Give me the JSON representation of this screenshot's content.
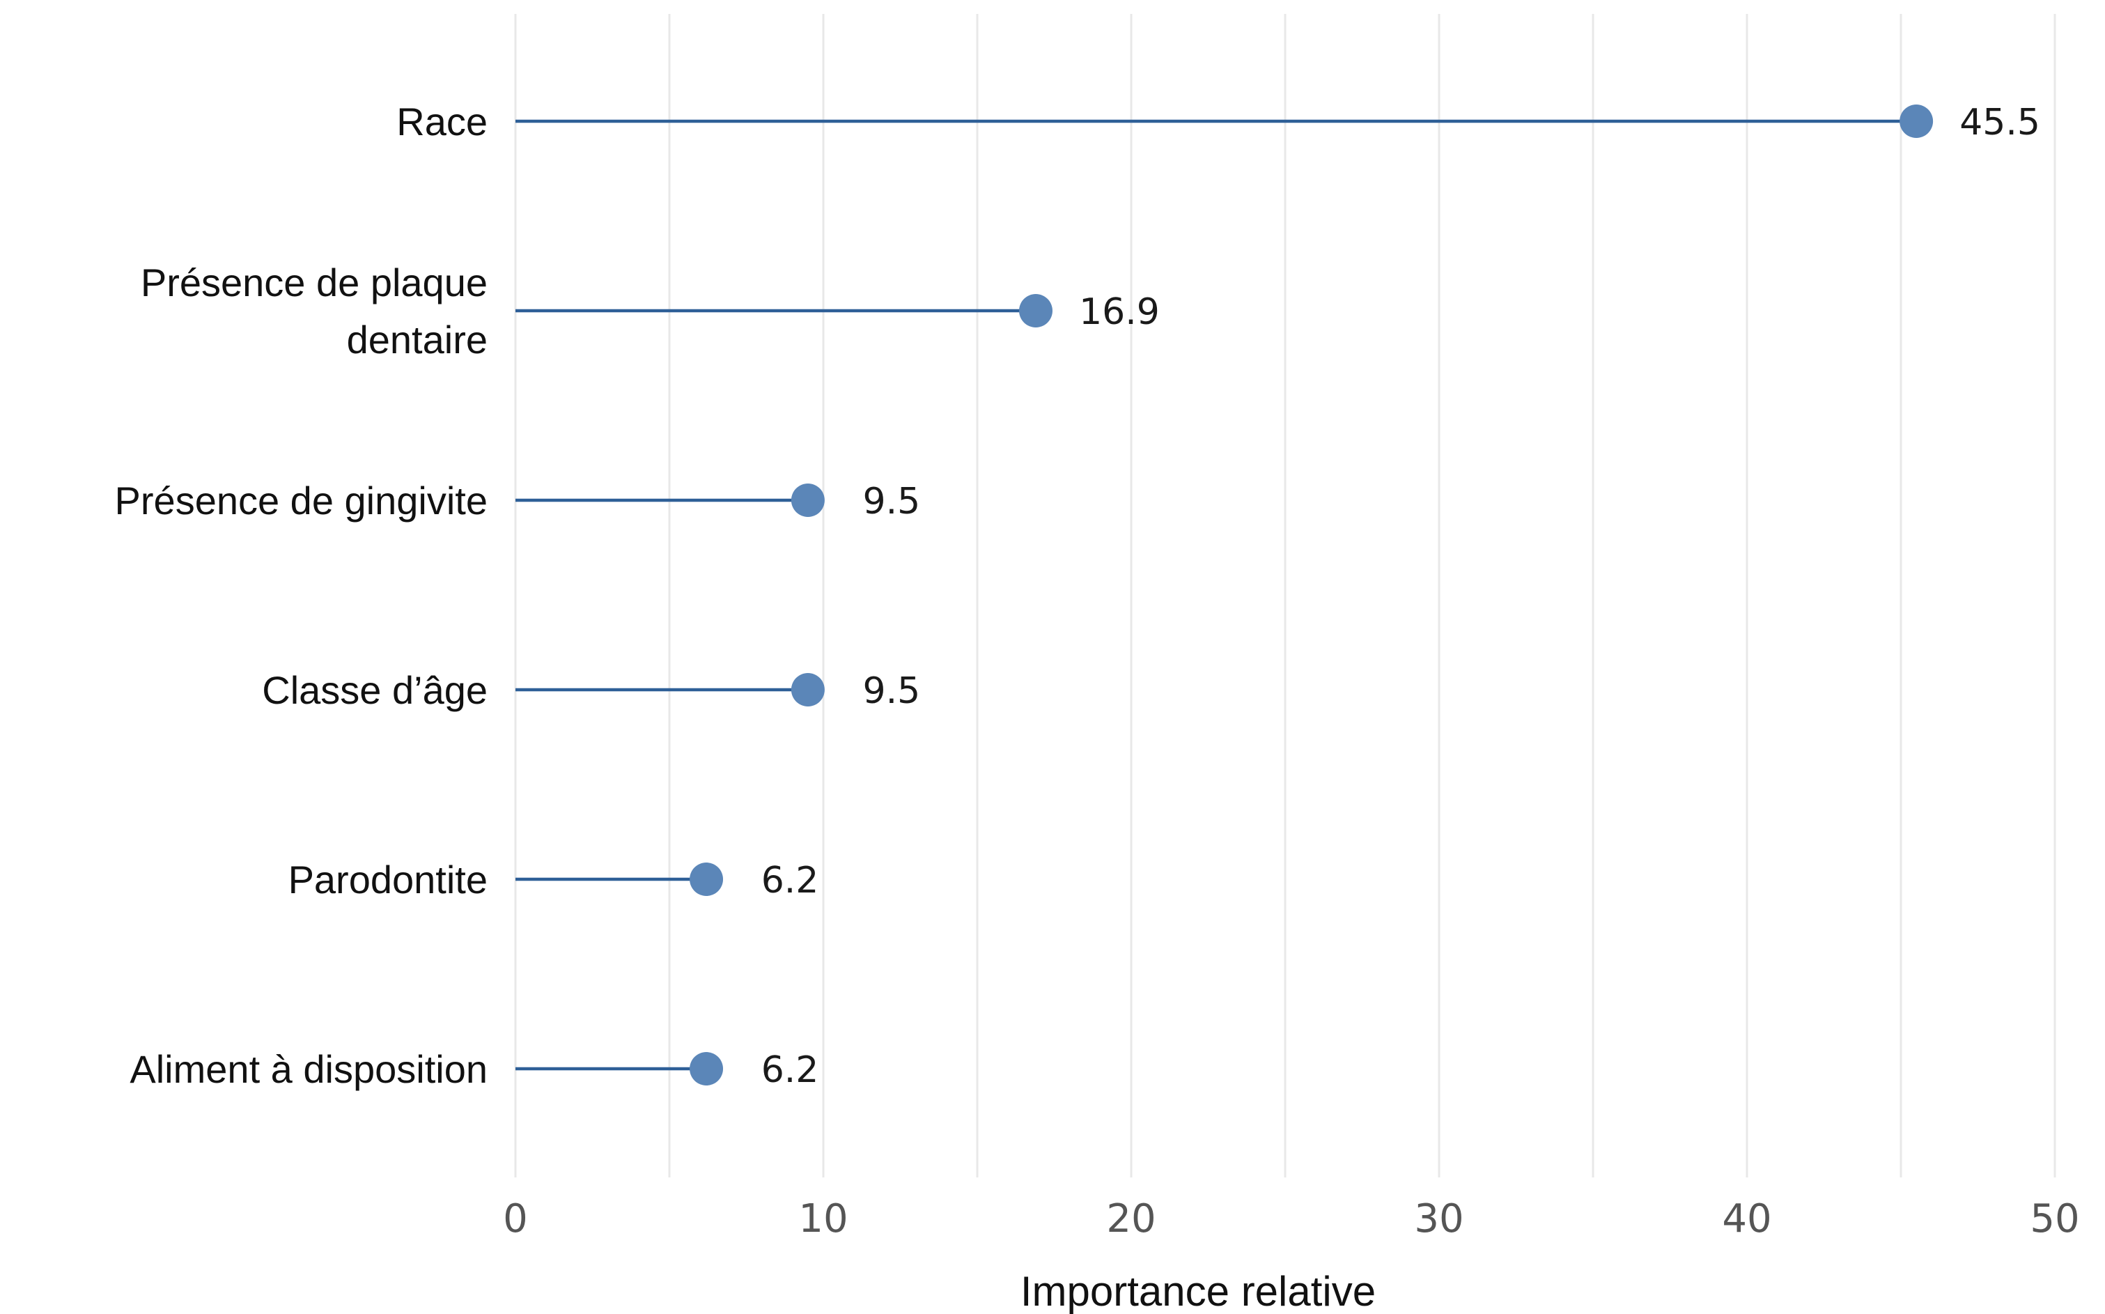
{
  "chart_data": {
    "type": "lollipop",
    "orientation": "horizontal",
    "title": "",
    "xlabel": "Importance relative",
    "ylabel": "",
    "xlim": [
      0,
      50
    ],
    "xticks": [
      0,
      10,
      20,
      30,
      40,
      50
    ],
    "grid": "vertical",
    "legend": "none",
    "categories": [
      [
        "Race"
      ],
      [
        "Présence de plaque",
        "dentaire"
      ],
      [
        "Présence de gingivite"
      ],
      [
        "Classe d’âge"
      ],
      [
        "Parodontite"
      ],
      [
        "Aliment à disposition"
      ]
    ],
    "values": [
      45.5,
      16.9,
      9.5,
      9.5,
      6.2,
      6.2
    ],
    "value_labels": [
      "45.5",
      "16.9",
      "9.5",
      "9.5",
      "6.2",
      "6.2"
    ],
    "colors": {
      "marker": "#5b86b8",
      "stem": "#2e5f97",
      "grid": "#e8e8e8"
    }
  }
}
